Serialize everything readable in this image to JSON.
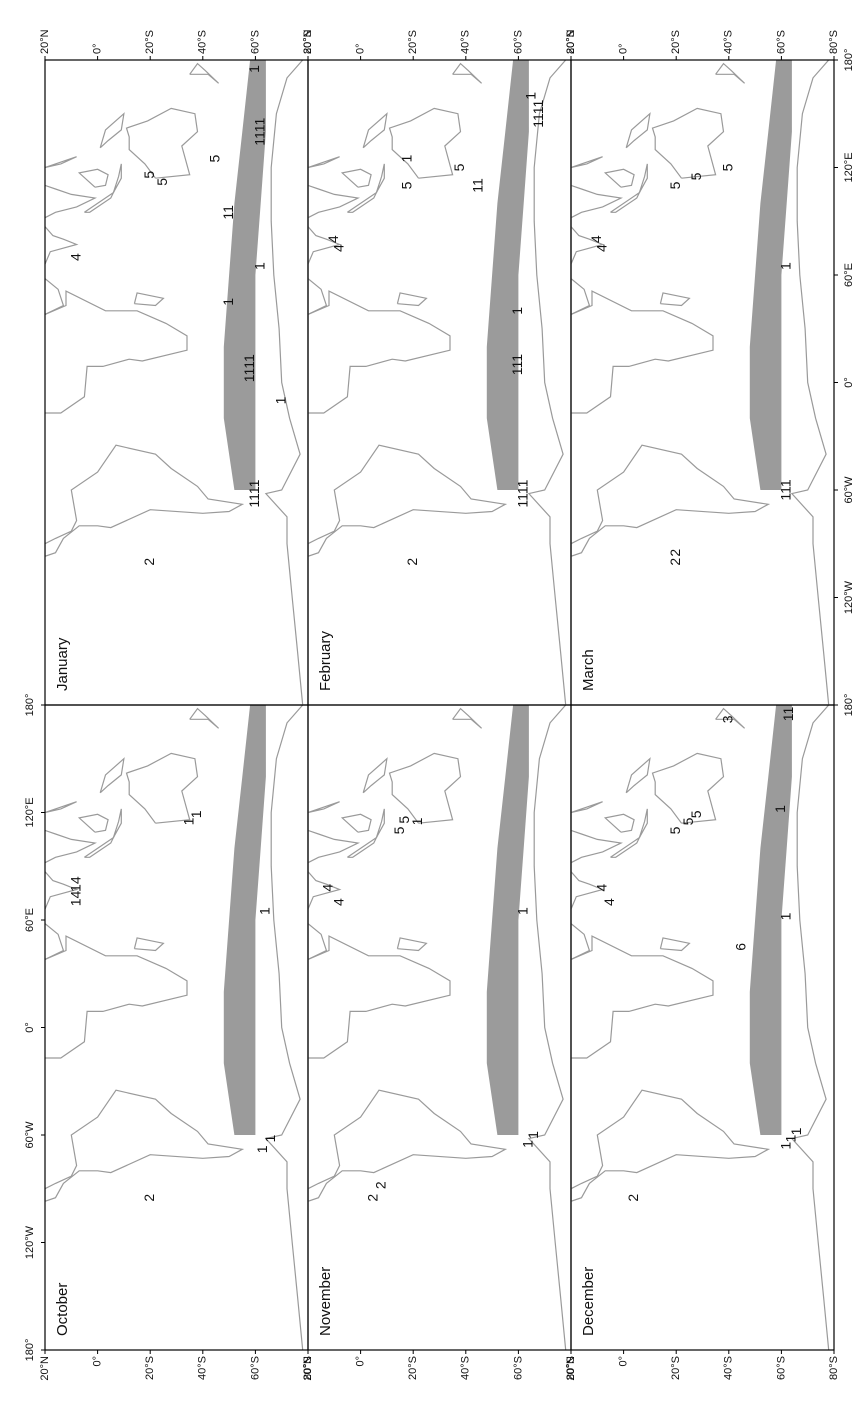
{
  "lon_ticks": [
    {
      "value": -180,
      "label": "180°"
    },
    {
      "value": -120,
      "label": "120°W"
    },
    {
      "value": -60,
      "label": "60°W"
    },
    {
      "value": 0,
      "label": "0°"
    },
    {
      "value": 60,
      "label": "60°E"
    },
    {
      "value": 120,
      "label": "120°E"
    },
    {
      "value": 180,
      "label": "180°"
    }
  ],
  "lat_ticks": [
    {
      "value": 20,
      "label": "20°N"
    },
    {
      "value": 0,
      "label": "0°"
    },
    {
      "value": -20,
      "label": "20°S"
    },
    {
      "value": -40,
      "label": "40°S"
    },
    {
      "value": -60,
      "label": "60°S"
    },
    {
      "value": -80,
      "label": "80°S"
    }
  ],
  "panels": [
    {
      "title": "October",
      "annotations": [
        {
          "text": "2",
          "lon": -95,
          "lat": -20
        },
        {
          "text": "1",
          "lon": -68,
          "lat": -63
        },
        {
          "text": "1",
          "lon": -62,
          "lat": -66
        },
        {
          "text": "14",
          "lon": 72,
          "lat": 8
        },
        {
          "text": "14",
          "lon": 80,
          "lat": 8
        },
        {
          "text": "1",
          "lon": 115,
          "lat": -35
        },
        {
          "text": "1",
          "lon": 119,
          "lat": -38
        },
        {
          "text": "1",
          "lon": 65,
          "lat": -64
        }
      ]
    },
    {
      "title": "November",
      "annotations": [
        {
          "text": "2",
          "lon": -95,
          "lat": -5
        },
        {
          "text": "2",
          "lon": -88,
          "lat": -8
        },
        {
          "text": "1",
          "lon": -65,
          "lat": -64
        },
        {
          "text": "1",
          "lon": -60,
          "lat": -66
        },
        {
          "text": "4",
          "lon": 70,
          "lat": 8
        },
        {
          "text": "4",
          "lon": 78,
          "lat": 12
        },
        {
          "text": "5",
          "lon": 110,
          "lat": -15
        },
        {
          "text": "5",
          "lon": 116,
          "lat": -17
        },
        {
          "text": "1",
          "lon": 115,
          "lat": -22
        },
        {
          "text": "1",
          "lon": 65,
          "lat": -62
        }
      ]
    },
    {
      "title": "December",
      "annotations": [
        {
          "text": "2",
          "lon": -95,
          "lat": -4
        },
        {
          "text": "1",
          "lon": -66,
          "lat": -62
        },
        {
          "text": "1",
          "lon": -62,
          "lat": -64
        },
        {
          "text": "1",
          "lon": -58,
          "lat": -66
        },
        {
          "text": "6",
          "lon": 45,
          "lat": -45
        },
        {
          "text": "4",
          "lon": 70,
          "lat": 5
        },
        {
          "text": "4",
          "lon": 78,
          "lat": 8
        },
        {
          "text": "5",
          "lon": 110,
          "lat": -20
        },
        {
          "text": "5",
          "lon": 115,
          "lat": -25
        },
        {
          "text": "5",
          "lon": 119,
          "lat": -28
        },
        {
          "text": "1",
          "lon": 62,
          "lat": -62
        },
        {
          "text": "1",
          "lon": 122,
          "lat": -60
        },
        {
          "text": "3",
          "lon": 172,
          "lat": -40
        },
        {
          "text": "11",
          "lon": 175,
          "lat": -63
        }
      ]
    },
    {
      "title": "January",
      "annotations": [
        {
          "text": "2",
          "lon": -100,
          "lat": -20
        },
        {
          "text": "1111",
          "lon": -62,
          "lat": -60
        },
        {
          "text": "1",
          "lon": -10,
          "lat": -70
        },
        {
          "text": "1111",
          "lon": 8,
          "lat": -58
        },
        {
          "text": "4",
          "lon": 70,
          "lat": 8
        },
        {
          "text": "5",
          "lon": 112,
          "lat": -25
        },
        {
          "text": "5",
          "lon": 116,
          "lat": -20
        },
        {
          "text": "5",
          "lon": 125,
          "lat": -45
        },
        {
          "text": "1",
          "lon": 65,
          "lat": -62
        },
        {
          "text": "11",
          "lon": 95,
          "lat": -50
        },
        {
          "text": "1111",
          "lon": 140,
          "lat": -62
        },
        {
          "text": "1",
          "lon": 175,
          "lat": -60
        },
        {
          "text": "1",
          "lon": 45,
          "lat": -50
        }
      ]
    },
    {
      "title": "February",
      "annotations": [
        {
          "text": "2",
          "lon": -100,
          "lat": -20
        },
        {
          "text": "1111",
          "lon": -62,
          "lat": -62
        },
        {
          "text": "111",
          "lon": 10,
          "lat": -60
        },
        {
          "text": "1",
          "lon": 40,
          "lat": -60
        },
        {
          "text": "4",
          "lon": 75,
          "lat": 8
        },
        {
          "text": "4",
          "lon": 80,
          "lat": 10
        },
        {
          "text": "5",
          "lon": 110,
          "lat": -18
        },
        {
          "text": "5",
          "lon": 120,
          "lat": -38
        },
        {
          "text": "1",
          "lon": 125,
          "lat": -18
        },
        {
          "text": "11",
          "lon": 110,
          "lat": -45
        },
        {
          "text": "1",
          "lon": 160,
          "lat": -65
        },
        {
          "text": "1111",
          "lon": 150,
          "lat": -68
        }
      ]
    },
    {
      "title": "March",
      "annotations": [
        {
          "text": "2",
          "lon": -100,
          "lat": -20
        },
        {
          "text": "2",
          "lon": -95,
          "lat": -20
        },
        {
          "text": "111",
          "lon": -60,
          "lat": -62
        },
        {
          "text": "1",
          "lon": 65,
          "lat": -62
        },
        {
          "text": "4",
          "lon": 75,
          "lat": 8
        },
        {
          "text": "4",
          "lon": 80,
          "lat": 10
        },
        {
          "text": "5",
          "lon": 110,
          "lat": -20
        },
        {
          "text": "5",
          "lon": 115,
          "lat": -28
        },
        {
          "text": "5",
          "lon": 120,
          "lat": -40
        }
      ]
    }
  ]
}
